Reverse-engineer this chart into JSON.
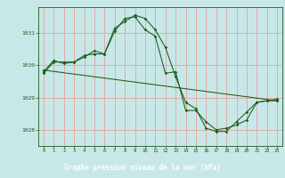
{
  "title": "Graphe pression niveau de la mer (hPa)",
  "bg_color": "#c8e8e8",
  "title_bg": "#2d6e2d",
  "title_fg": "#ffffff",
  "grid_color": "#e8a0a0",
  "line_color": "#1a5c1a",
  "xlim": [
    -0.5,
    23.5
  ],
  "ylim": [
    1027.5,
    1031.8
  ],
  "yticks": [
    1028,
    1029,
    1030,
    1031
  ],
  "xticks": [
    0,
    1,
    2,
    3,
    4,
    5,
    6,
    7,
    8,
    9,
    10,
    11,
    12,
    13,
    14,
    15,
    16,
    17,
    18,
    19,
    20,
    21,
    22,
    23
  ],
  "series1_x": [
    0,
    1,
    2,
    3,
    4,
    5,
    6,
    7,
    8,
    9,
    10,
    11,
    12,
    13,
    14,
    15,
    16,
    17,
    18,
    19,
    20,
    21,
    22,
    23
  ],
  "series1_y": [
    1029.8,
    1030.15,
    1030.05,
    1030.1,
    1030.25,
    1030.45,
    1030.35,
    1031.15,
    1031.35,
    1031.55,
    1031.45,
    1031.1,
    1030.55,
    1029.65,
    1028.85,
    1028.65,
    1028.05,
    1027.95,
    1027.95,
    1028.25,
    1028.55,
    1028.85,
    1028.9,
    1028.95
  ],
  "series2_x": [
    0,
    1,
    2,
    3,
    4,
    5,
    6,
    7,
    8,
    9,
    10,
    11,
    12,
    13,
    14,
    15,
    16,
    17,
    18,
    19,
    20,
    21,
    22,
    23
  ],
  "series2_y": [
    1029.75,
    1030.1,
    1030.1,
    1030.1,
    1030.3,
    1030.35,
    1030.35,
    1031.05,
    1031.45,
    1031.5,
    1031.1,
    1030.9,
    1029.75,
    1029.8,
    1028.6,
    1028.6,
    1028.25,
    1028.0,
    1028.05,
    1028.15,
    1028.3,
    1028.85,
    1028.9,
    1028.9
  ],
  "series3_x": [
    0,
    23
  ],
  "series3_y": [
    1029.85,
    1028.9
  ],
  "figsize": [
    3.2,
    2.0
  ],
  "dpi": 100
}
